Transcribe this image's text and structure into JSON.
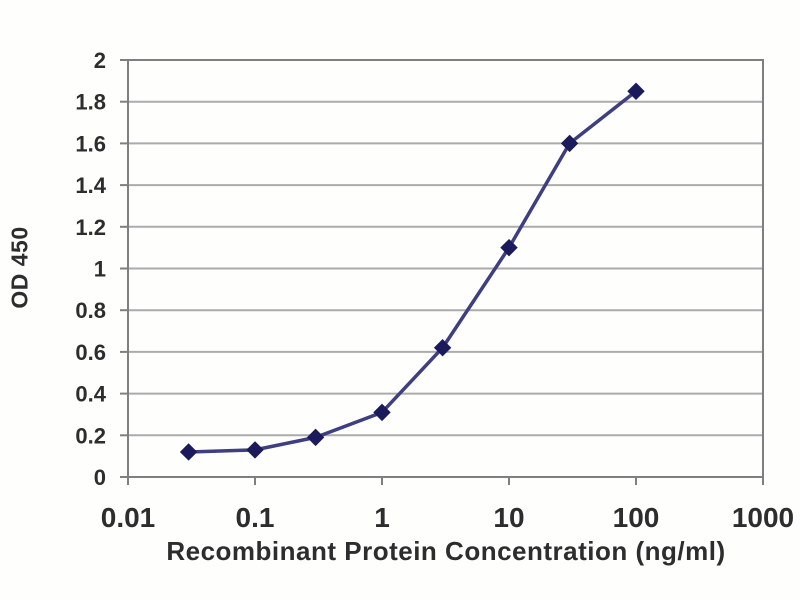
{
  "chart_data": {
    "type": "line",
    "title": "",
    "xlabel": "Recombinant Protein Concentration (ng/ml)",
    "ylabel": "OD 450",
    "xscale": "log",
    "xlim": [
      0.01,
      1000
    ],
    "ylim": [
      0,
      2
    ],
    "x_ticks": [
      0.01,
      0.1,
      1,
      10,
      100,
      1000
    ],
    "x_tick_labels": [
      "0.01",
      "0.1",
      "1",
      "10",
      "100",
      "1000"
    ],
    "y_ticks": [
      0,
      0.2,
      0.4,
      0.6,
      0.8,
      1,
      1.2,
      1.4,
      1.6,
      1.8,
      2
    ],
    "y_tick_labels": [
      "0",
      "0.2",
      "0.4",
      "0.6",
      "0.8",
      "1",
      "1.2",
      "1.4",
      "1.6",
      "1.8",
      "2"
    ],
    "grid": "horizontal-only",
    "legend": "none",
    "series": [
      {
        "name": "OD 450",
        "marker": "diamond",
        "x": [
          0.03,
          0.1,
          0.3,
          1,
          3,
          10,
          30,
          100
        ],
        "y": [
          0.12,
          0.13,
          0.19,
          0.31,
          0.62,
          1.1,
          1.6,
          1.85
        ]
      }
    ],
    "colors": {
      "line": "#3e3e80",
      "marker": "#1b1b5c",
      "grid": "#ababab",
      "axis_border": "#7f7f7f",
      "text": "#2d2d2d",
      "background": "#fefefc"
    }
  }
}
